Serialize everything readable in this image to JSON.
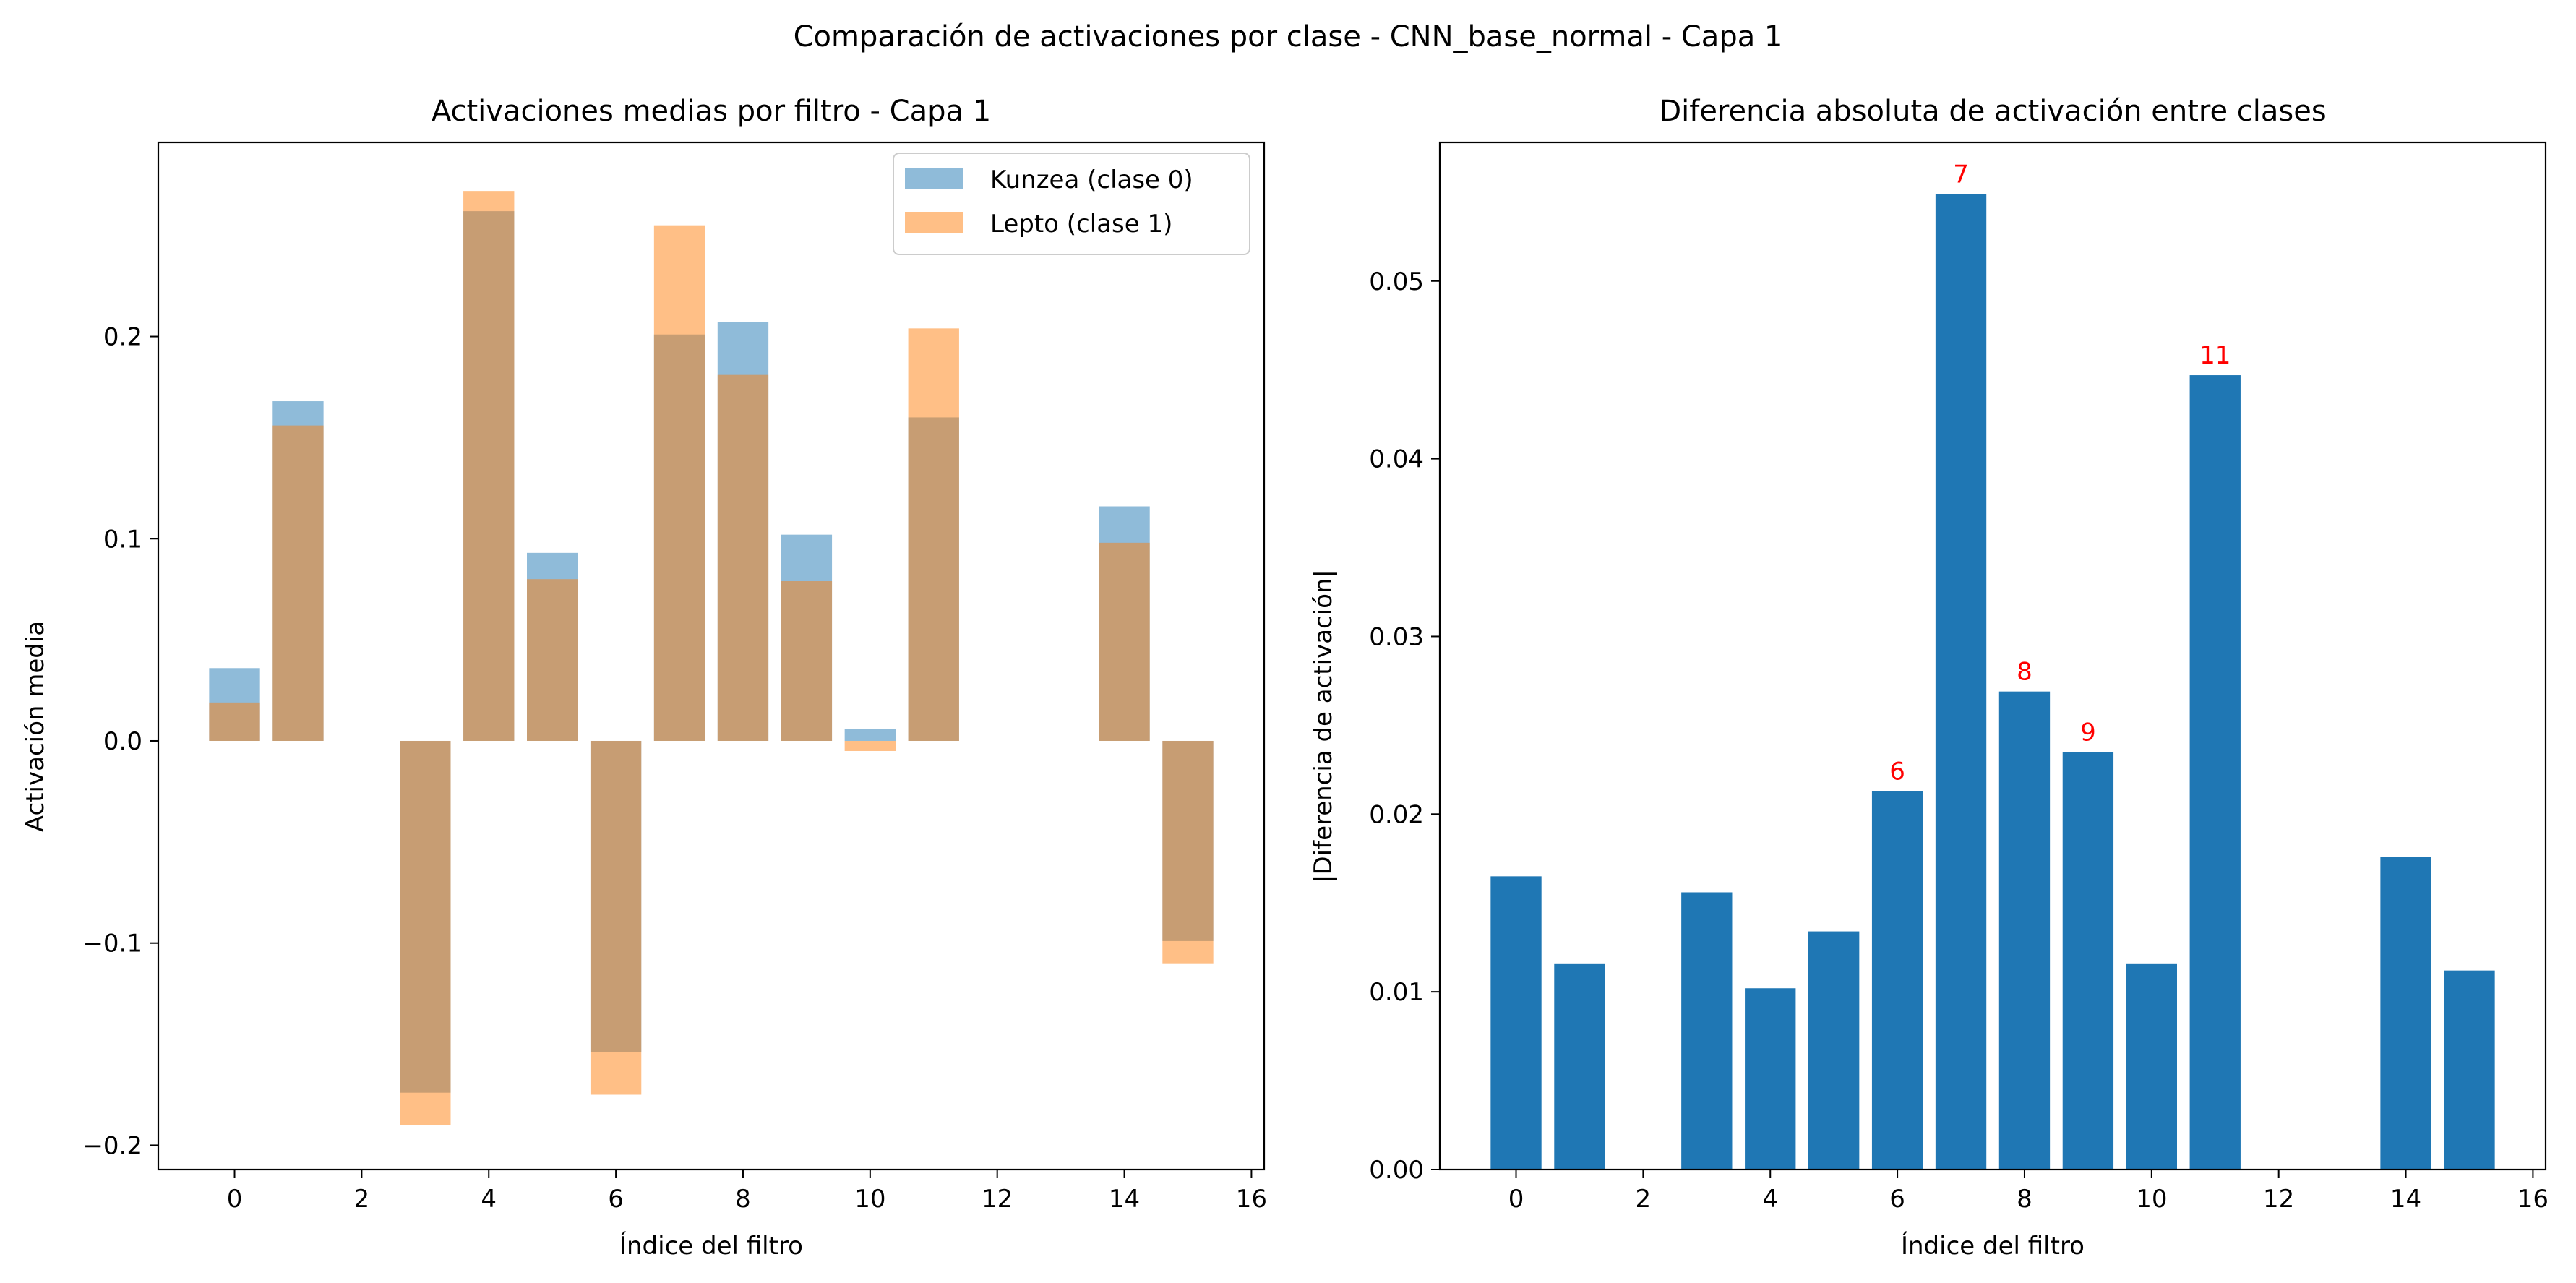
{
  "figure": {
    "suptitle": "Comparación de activaciones por clase - CNN_base_normal - Capa 1"
  },
  "colors": {
    "kunzea": "#1f77b4",
    "lepto": "#ff7f0e",
    "overlap": "#c79c71",
    "diff": "#1f77b4",
    "annotation": "#ff0000"
  },
  "chart_data": [
    {
      "type": "bar",
      "title": "Activaciones medias por filtro - Capa 1",
      "xlabel": "Índice del filtro",
      "ylabel": "Activación media",
      "xlim": [
        -1.2,
        16.2
      ],
      "ylim": [
        -0.212,
        0.296
      ],
      "xticks": [
        0,
        2,
        4,
        6,
        8,
        10,
        12,
        14,
        16
      ],
      "yticks": [
        -0.2,
        -0.1,
        0.0,
        0.1,
        0.2
      ],
      "ytick_labels": [
        "−0.2",
        "−0.1",
        "0.0",
        "0.1",
        "0.2"
      ],
      "bar_alpha": 0.5,
      "legend_position": "top-right",
      "x": [
        0,
        1,
        2,
        3,
        4,
        5,
        6,
        7,
        8,
        9,
        10,
        11,
        12,
        13,
        14,
        15
      ],
      "series": [
        {
          "name": "Kunzea (clase 0)",
          "color": "#1f77b4",
          "values": [
            0.036,
            0.168,
            0.0,
            -0.174,
            0.262,
            0.093,
            -0.154,
            0.201,
            0.207,
            0.102,
            0.006,
            0.16,
            0.0,
            0.0,
            0.116,
            -0.099
          ]
        },
        {
          "name": "Lepto (clase 1)",
          "color": "#ff7f0e",
          "values": [
            0.019,
            0.156,
            0.0,
            -0.19,
            0.272,
            0.08,
            -0.175,
            0.255,
            0.181,
            0.079,
            -0.005,
            0.204,
            0.0,
            0.0,
            0.098,
            -0.11
          ]
        }
      ]
    },
    {
      "type": "bar",
      "title": "Diferencia absoluta de activación entre clases",
      "xlabel": "Índice del filtro",
      "ylabel": "|Diferencia de activación|",
      "xlim": [
        -1.2,
        16.2
      ],
      "ylim": [
        0,
        0.0578
      ],
      "xticks": [
        0,
        2,
        4,
        6,
        8,
        10,
        12,
        14,
        16
      ],
      "yticks": [
        0.0,
        0.01,
        0.02,
        0.03,
        0.04,
        0.05
      ],
      "ytick_labels": [
        "0.00",
        "0.01",
        "0.02",
        "0.03",
        "0.04",
        "0.05"
      ],
      "x": [
        0,
        1,
        2,
        3,
        4,
        5,
        6,
        7,
        8,
        9,
        10,
        11,
        12,
        13,
        14,
        15
      ],
      "values": [
        0.0165,
        0.0116,
        0.0,
        0.0156,
        0.0102,
        0.0134,
        0.0213,
        0.0549,
        0.0269,
        0.0235,
        0.0116,
        0.0447,
        0.0,
        0.0,
        0.0176,
        0.0112
      ],
      "annotations": [
        {
          "x": 6,
          "label": "6"
        },
        {
          "x": 7,
          "label": "7"
        },
        {
          "x": 8,
          "label": "8"
        },
        {
          "x": 9,
          "label": "9"
        },
        {
          "x": 11,
          "label": "11"
        }
      ]
    }
  ]
}
